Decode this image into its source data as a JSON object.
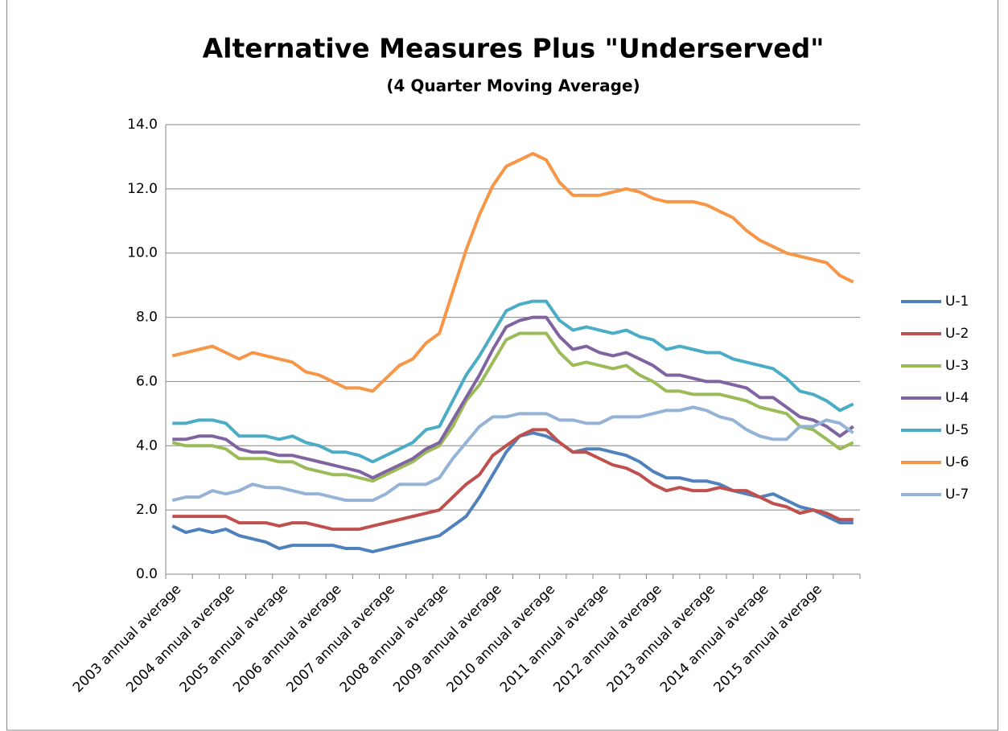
{
  "chart_data": {
    "type": "line",
    "title": "Alternative Measures Plus \"Underserved\"",
    "subtitle": "(4 Quarter Moving Average)",
    "categories": [
      "2003 annual average",
      null,
      null,
      null,
      "2004 annual average",
      null,
      null,
      null,
      "2005 annual average",
      null,
      null,
      null,
      "2006 annual average",
      null,
      null,
      null,
      "2007 annual average",
      null,
      null,
      null,
      "2008 annual average",
      null,
      null,
      null,
      "2009 annual average",
      null,
      null,
      null,
      "2010 annual average",
      null,
      null,
      null,
      "2011 annual average",
      null,
      null,
      null,
      "2012 annual average",
      null,
      null,
      null,
      "2013 annual average",
      null,
      null,
      null,
      "2014 annual average",
      null,
      null,
      null,
      "2015 annual average",
      null,
      null,
      null
    ],
    "series": [
      {
        "name": "U-1",
        "color": "#4F81BD",
        "values": [
          1.5,
          1.3,
          1.4,
          1.3,
          1.4,
          1.2,
          1.1,
          1.0,
          0.8,
          0.9,
          0.9,
          0.9,
          0.9,
          0.8,
          0.8,
          0.7,
          0.8,
          0.9,
          1.0,
          1.1,
          1.2,
          1.5,
          1.8,
          2.4,
          3.1,
          3.8,
          4.3,
          4.4,
          4.3,
          4.1,
          3.8,
          3.9,
          3.9,
          3.8,
          3.7,
          3.5,
          3.2,
          3.0,
          3.0,
          2.9,
          2.9,
          2.8,
          2.6,
          2.5,
          2.4,
          2.5,
          2.3,
          2.1,
          2.0,
          1.8,
          1.6,
          1.6
        ]
      },
      {
        "name": "U-2",
        "color": "#C0504D",
        "values": [
          1.8,
          1.8,
          1.8,
          1.8,
          1.8,
          1.6,
          1.6,
          1.6,
          1.5,
          1.6,
          1.6,
          1.5,
          1.4,
          1.4,
          1.4,
          1.5,
          1.6,
          1.7,
          1.8,
          1.9,
          2.0,
          2.4,
          2.8,
          3.1,
          3.7,
          4.0,
          4.3,
          4.5,
          4.5,
          4.1,
          3.8,
          3.8,
          3.6,
          3.4,
          3.3,
          3.1,
          2.8,
          2.6,
          2.7,
          2.6,
          2.6,
          2.7,
          2.6,
          2.6,
          2.4,
          2.2,
          2.1,
          1.9,
          2.0,
          1.9,
          1.7,
          1.7
        ]
      },
      {
        "name": "U-3",
        "color": "#9BBB59",
        "values": [
          4.1,
          4.0,
          4.0,
          4.0,
          3.9,
          3.6,
          3.6,
          3.6,
          3.5,
          3.5,
          3.3,
          3.2,
          3.1,
          3.1,
          3.0,
          2.9,
          3.1,
          3.3,
          3.5,
          3.8,
          4.0,
          4.6,
          5.4,
          5.9,
          6.6,
          7.3,
          7.5,
          7.5,
          7.5,
          6.9,
          6.5,
          6.6,
          6.5,
          6.4,
          6.5,
          6.2,
          6.0,
          5.7,
          5.7,
          5.6,
          5.6,
          5.6,
          5.5,
          5.4,
          5.2,
          5.1,
          5.0,
          4.6,
          4.5,
          4.2,
          3.9,
          4.1
        ]
      },
      {
        "name": "U-4",
        "color": "#8064A2",
        "values": [
          4.2,
          4.2,
          4.3,
          4.3,
          4.2,
          3.9,
          3.8,
          3.8,
          3.7,
          3.7,
          3.6,
          3.5,
          3.4,
          3.3,
          3.2,
          3.0,
          3.2,
          3.4,
          3.6,
          3.9,
          4.1,
          4.8,
          5.5,
          6.2,
          7.0,
          7.7,
          7.9,
          8.0,
          8.0,
          7.4,
          7.0,
          7.1,
          6.9,
          6.8,
          6.9,
          6.7,
          6.5,
          6.2,
          6.2,
          6.1,
          6.0,
          6.0,
          5.9,
          5.8,
          5.5,
          5.5,
          5.2,
          4.9,
          4.8,
          4.6,
          4.3,
          4.6
        ]
      },
      {
        "name": "U-5",
        "color": "#4BACC6",
        "values": [
          4.7,
          4.7,
          4.8,
          4.8,
          4.7,
          4.3,
          4.3,
          4.3,
          4.2,
          4.3,
          4.1,
          4.0,
          3.8,
          3.8,
          3.7,
          3.5,
          3.7,
          3.9,
          4.1,
          4.5,
          4.6,
          5.4,
          6.2,
          6.8,
          7.5,
          8.2,
          8.4,
          8.5,
          8.5,
          7.9,
          7.6,
          7.7,
          7.6,
          7.5,
          7.6,
          7.4,
          7.3,
          7.0,
          7.1,
          7.0,
          6.9,
          6.9,
          6.7,
          6.6,
          6.5,
          6.4,
          6.1,
          5.7,
          5.6,
          5.4,
          5.1,
          5.3
        ]
      },
      {
        "name": "U-6",
        "color": "#F79646",
        "values": [
          6.8,
          6.9,
          7.0,
          7.1,
          6.9,
          6.7,
          6.9,
          6.8,
          6.7,
          6.6,
          6.3,
          6.2,
          6.0,
          5.8,
          5.8,
          5.7,
          6.1,
          6.5,
          6.7,
          7.2,
          7.5,
          8.8,
          10.1,
          11.2,
          12.1,
          12.7,
          12.9,
          13.1,
          12.9,
          12.2,
          11.8,
          11.8,
          11.8,
          11.9,
          12.0,
          11.9,
          11.7,
          11.6,
          11.6,
          11.6,
          11.5,
          11.3,
          11.1,
          10.7,
          10.4,
          10.2,
          10.0,
          9.9,
          9.8,
          9.7,
          9.3,
          9.1
        ]
      },
      {
        "name": "U-7",
        "color": "#95B3D7",
        "values": [
          2.3,
          2.4,
          2.4,
          2.6,
          2.5,
          2.6,
          2.8,
          2.7,
          2.7,
          2.6,
          2.5,
          2.5,
          2.4,
          2.3,
          2.3,
          2.3,
          2.5,
          2.8,
          2.8,
          2.8,
          3.0,
          3.6,
          4.1,
          4.6,
          4.9,
          4.9,
          5.0,
          5.0,
          5.0,
          4.8,
          4.8,
          4.7,
          4.7,
          4.9,
          4.9,
          4.9,
          5.0,
          5.1,
          5.1,
          5.2,
          5.1,
          4.9,
          4.8,
          4.5,
          4.3,
          4.2,
          4.2,
          4.6,
          4.6,
          4.8,
          4.7,
          4.4
        ]
      }
    ],
    "ylim": [
      0,
      14
    ],
    "yticks": [
      {
        "value": 0,
        "label": "0.0"
      },
      {
        "value": 2,
        "label": "2.0"
      },
      {
        "value": 4,
        "label": "4.0"
      },
      {
        "value": 6,
        "label": "6.0"
      },
      {
        "value": 8,
        "label": "8.0"
      },
      {
        "value": 10,
        "label": "10.0"
      },
      {
        "value": 12,
        "label": "12.0"
      },
      {
        "value": 14,
        "label": "14.0"
      }
    ],
    "grid": true,
    "legend": "right"
  }
}
